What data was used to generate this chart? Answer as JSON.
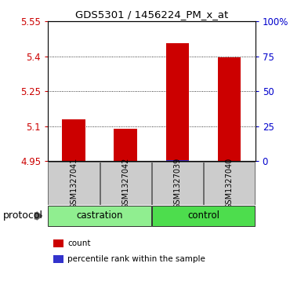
{
  "title": "GDS5301 / 1456224_PM_x_at",
  "samples": [
    "GSM1327041",
    "GSM1327042",
    "GSM1327039",
    "GSM1327040"
  ],
  "red_values": [
    5.13,
    5.087,
    5.455,
    5.395
  ],
  "blue_values": [
    4.952,
    4.952,
    4.953,
    4.952
  ],
  "ylim_left": [
    4.95,
    5.55
  ],
  "yticks_left": [
    4.95,
    5.1,
    5.25,
    5.4,
    5.55
  ],
  "ytick_labels_left": [
    "4.95",
    "5.1",
    "5.25",
    "5.4",
    "5.55"
  ],
  "ylim_right": [
    0,
    100
  ],
  "yticks_right": [
    0,
    25,
    50,
    75,
    100
  ],
  "ytick_labels_right": [
    "0",
    "25",
    "50",
    "75",
    "100%"
  ],
  "baseline": 4.95,
  "bar_width": 0.45,
  "red_color": "#cc0000",
  "blue_color": "#3333cc",
  "groups": [
    {
      "label": "castration",
      "indices": [
        0,
        1
      ],
      "color": "#90ee90"
    },
    {
      "label": "control",
      "indices": [
        2,
        3
      ],
      "color": "#4ddd4d"
    }
  ],
  "protocol_label": "protocol",
  "legend_items": [
    {
      "color": "#cc0000",
      "label": "count"
    },
    {
      "color": "#3333cc",
      "label": "percentile rank within the sample"
    }
  ],
  "sample_box_color": "#cccccc",
  "left_tick_color": "#cc0000",
  "right_tick_color": "#0000cc",
  "fig_bg": "#ffffff"
}
